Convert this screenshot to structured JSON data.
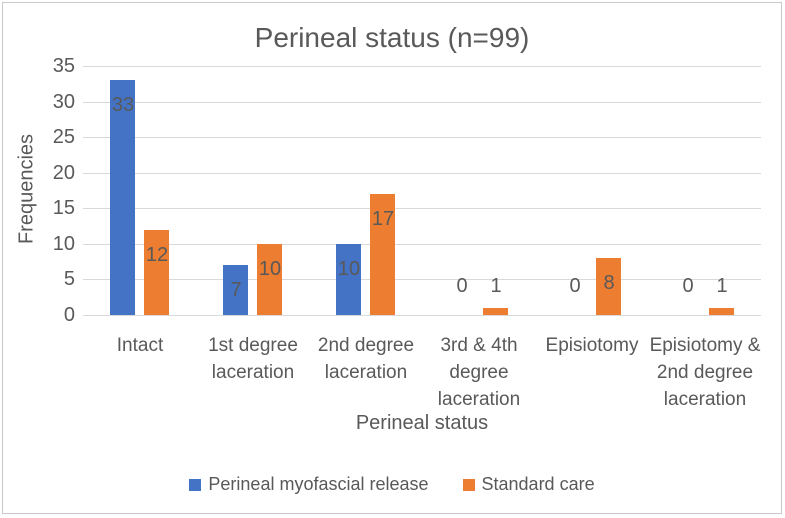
{
  "chart_data": {
    "type": "bar",
    "title": "Perineal status (n=99)",
    "xlabel": "Perineal status",
    "ylabel": "Frequencies",
    "ylim": [
      0,
      35
    ],
    "yticks": [
      0,
      5,
      10,
      15,
      20,
      25,
      30,
      35
    ],
    "grid": true,
    "legend_position": "bottom",
    "categories": [
      "Intact",
      "1st degree laceration",
      "2nd degree laceration",
      "3rd & 4th degree laceration",
      "Episiotomy",
      "Episiotomy & 2nd degree laceration"
    ],
    "category_label_lines": [
      [
        "Intact"
      ],
      [
        "1st degree",
        "laceration"
      ],
      [
        "2nd degree",
        "laceration"
      ],
      [
        "3rd & 4th",
        "degree",
        "laceration"
      ],
      [
        "Episiotomy"
      ],
      [
        "Episiotomy &",
        "2nd degree",
        "laceration"
      ]
    ],
    "series": [
      {
        "name": "Perineal myofascial release",
        "color": "#4472C4",
        "values": [
          33,
          7,
          10,
          0,
          0,
          0
        ]
      },
      {
        "name": "Standard care",
        "color": "#ED7D31",
        "values": [
          12,
          10,
          17,
          1,
          8,
          1
        ]
      }
    ],
    "colors": {
      "text": "#595959",
      "grid": "#D9D9D9",
      "data_label": "#595959",
      "border": "#C9C9C9",
      "background": "#FFFFFF"
    }
  }
}
